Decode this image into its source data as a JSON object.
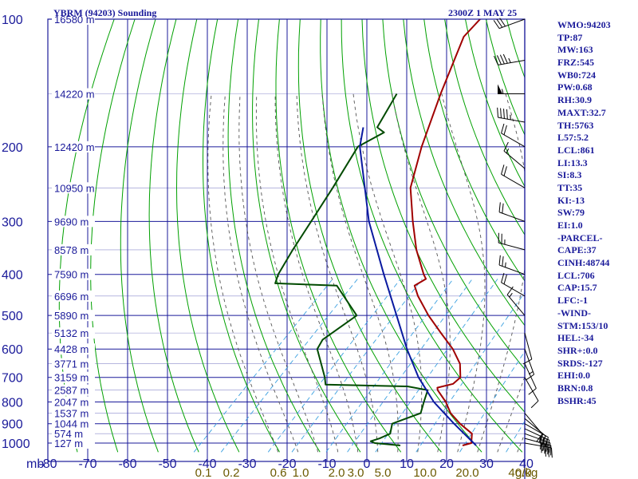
{
  "header": {
    "station": "YBRM (94203) Sounding",
    "time": "2300Z  1 MAY 25"
  },
  "indices": [
    "WMO:94203",
    "TP:87",
    "MW:163",
    "FRZ:545",
    "WB0:724",
    "PW:0.68",
    "RH:30.9",
    "MAXT:32.7",
    "TH:5763",
    "L57:5.2",
    "LCL:861",
    "LI:13.3",
    "SI:8.3",
    "TT:35",
    "KI:-13",
    "SW:79",
    "EI:1.0",
    "-PARCEL-",
    "CAPE:37",
    "CINH:48744",
    "LCL:706",
    "CAP:15.7",
    "LFC:-1",
    "-WIND-",
    "STM:153/10",
    "HEL:-34",
    "SHR+:0.0",
    "SRDS:-127",
    "EHI:0.0",
    "BRN:0.8",
    "BSHR:45"
  ],
  "colors": {
    "frame": "#1a1a9a",
    "isotherm": "#1a1a9a",
    "isobar": "#1a1a9a",
    "dry_adiabat": "#00a000",
    "moist_adiabat": "#555555",
    "mixing_ratio": "#3aa0e0",
    "temperature": "#a00000",
    "dewpoint": "#004a00",
    "parcel": "#0a1aa0",
    "mixing_label": "#6b5a00",
    "wind_barb": "#000000"
  },
  "chart_data": {
    "type": "skew-t log-p sounding",
    "pressure_axis": {
      "unit_label": "mb",
      "ticks": [
        100,
        200,
        300,
        400,
        500,
        600,
        700,
        800,
        900,
        1000
      ],
      "range": [
        100,
        1000
      ],
      "log_scale": true
    },
    "temperature_axis": {
      "unit_label": "C",
      "ticks": [
        -80,
        -70,
        -60,
        -50,
        -40,
        -30,
        -20,
        -10,
        0,
        10,
        20,
        30,
        40
      ],
      "range": [
        -80,
        40
      ]
    },
    "mixing_ratio_axis": {
      "unit_label": "g/kg",
      "ticks": [
        "0.1",
        "0.2",
        "0.6",
        "1.0",
        "2.0",
        "3.0",
        "5.0",
        "10.0",
        "20.0",
        "40.0"
      ]
    },
    "height_labels": [
      {
        "p": 100,
        "label": "16580 m"
      },
      {
        "p": 150,
        "label": "14220 m"
      },
      {
        "p": 200,
        "label": "12420 m"
      },
      {
        "p": 250,
        "label": "10950 m"
      },
      {
        "p": 300,
        "label": "9690 m"
      },
      {
        "p": 350,
        "label": "8578 m"
      },
      {
        "p": 400,
        "label": "7590 m"
      },
      {
        "p": 450,
        "label": "6696 m"
      },
      {
        "p": 500,
        "label": "5890 m"
      },
      {
        "p": 550,
        "label": "5132 m"
      },
      {
        "p": 600,
        "label": "4428 m"
      },
      {
        "p": 650,
        "label": "3771 m"
      },
      {
        "p": 700,
        "label": "3159 m"
      },
      {
        "p": 750,
        "label": "2587 m"
      },
      {
        "p": 800,
        "label": "2047 m"
      },
      {
        "p": 850,
        "label": "1537 m"
      },
      {
        "p": 900,
        "label": "1044 m"
      },
      {
        "p": 950,
        "label": "574 m"
      },
      {
        "p": 1000,
        "label": "127 m"
      }
    ],
    "series": [
      {
        "type": "temperature",
        "points": [
          {
            "p": 1013,
            "t": 24.6
          },
          {
            "p": 1000,
            "t": 26.2
          },
          {
            "p": 950,
            "t": 24.0
          },
          {
            "p": 900,
            "t": 18.5
          },
          {
            "p": 850,
            "t": 13.5
          },
          {
            "p": 800,
            "t": 9.5
          },
          {
            "p": 750,
            "t": 4.5
          },
          {
            "p": 740,
            "t": 3.8
          },
          {
            "p": 725,
            "t": 6.8
          },
          {
            "p": 700,
            "t": 7.0
          },
          {
            "p": 650,
            "t": 3.5
          },
          {
            "p": 600,
            "t": -2.0
          },
          {
            "p": 550,
            "t": -9.0
          },
          {
            "p": 500,
            "t": -16.5
          },
          {
            "p": 450,
            "t": -24.0
          },
          {
            "p": 425,
            "t": -27.5
          },
          {
            "p": 410,
            "t": -26.3
          },
          {
            "p": 400,
            "t": -28.0
          },
          {
            "p": 350,
            "t": -36.0
          },
          {
            "p": 300,
            "t": -44.0
          },
          {
            "p": 250,
            "t": -53.0
          },
          {
            "p": 200,
            "t": -60.5
          },
          {
            "p": 150,
            "t": -69.0
          },
          {
            "p": 110,
            "t": -77.5
          },
          {
            "p": 100,
            "t": -77.8
          },
          {
            "p": 92,
            "t": -78.0
          }
        ]
      },
      {
        "type": "dewpoint",
        "points": [
          {
            "p": 1013,
            "t": 9.0
          },
          {
            "p": 1000,
            "t": 2.0
          },
          {
            "p": 990,
            "t": 0.5
          },
          {
            "p": 975,
            "t": 2.0
          },
          {
            "p": 950,
            "t": 3.5
          },
          {
            "p": 900,
            "t": 1.5
          },
          {
            "p": 850,
            "t": 6.0
          },
          {
            "p": 800,
            "t": 4.0
          },
          {
            "p": 750,
            "t": 2.0
          },
          {
            "p": 735,
            "t": -4.0
          },
          {
            "p": 728,
            "t": -25.0
          },
          {
            "p": 700,
            "t": -27.0
          },
          {
            "p": 600,
            "t": -36.0
          },
          {
            "p": 570,
            "t": -37.0
          },
          {
            "p": 500,
            "t": -34.5
          },
          {
            "p": 425,
            "t": -47.0
          },
          {
            "p": 420,
            "t": -63.0
          },
          {
            "p": 400,
            "t": -64.5
          },
          {
            "p": 350,
            "t": -67.0
          },
          {
            "p": 300,
            "t": -69.5
          },
          {
            "p": 250,
            "t": -72.5
          },
          {
            "p": 200,
            "t": -76.5
          },
          {
            "p": 185,
            "t": -73.5
          },
          {
            "p": 180,
            "t": -76.5
          },
          {
            "p": 150,
            "t": -80.0
          }
        ]
      },
      {
        "type": "parcel",
        "points": [
          {
            "p": 1013,
            "t": 28.0
          },
          {
            "p": 900,
            "t": 17.0
          },
          {
            "p": 800,
            "t": 6.5
          },
          {
            "p": 700,
            "t": -3.5
          },
          {
            "p": 600,
            "t": -13.5
          },
          {
            "p": 500,
            "t": -24.5
          },
          {
            "p": 400,
            "t": -38.0
          },
          {
            "p": 300,
            "t": -55.0
          },
          {
            "p": 200,
            "t": -76.0
          },
          {
            "p": 180,
            "t": -80.0
          }
        ]
      }
    ],
    "wind_barbs": [
      {
        "p": 1000,
        "dir": 100,
        "spd": 35
      },
      {
        "p": 975,
        "dir": 105,
        "spd": 40
      },
      {
        "p": 950,
        "dir": 110,
        "spd": 40
      },
      {
        "p": 925,
        "dir": 115,
        "spd": 35
      },
      {
        "p": 900,
        "dir": 120,
        "spd": 30
      },
      {
        "p": 875,
        "dir": 130,
        "spd": 20
      },
      {
        "p": 850,
        "dir": 140,
        "spd": 10
      },
      {
        "p": 700,
        "dir": 150,
        "spd": 10
      },
      {
        "p": 650,
        "dir": 155,
        "spd": 10
      },
      {
        "p": 600,
        "dir": 160,
        "spd": 15
      },
      {
        "p": 550,
        "dir": 165,
        "spd": 10
      },
      {
        "p": 500,
        "dir": 320,
        "spd": 15
      },
      {
        "p": 450,
        "dir": 300,
        "spd": 20
      },
      {
        "p": 400,
        "dir": 290,
        "spd": 25
      },
      {
        "p": 350,
        "dir": 285,
        "spd": 25
      },
      {
        "p": 300,
        "dir": 290,
        "spd": 20
      },
      {
        "p": 250,
        "dir": 300,
        "spd": 20
      },
      {
        "p": 225,
        "dir": 310,
        "spd": 15
      },
      {
        "p": 200,
        "dir": 300,
        "spd": 20
      },
      {
        "p": 175,
        "dir": 280,
        "spd": 45
      },
      {
        "p": 150,
        "dir": 270,
        "spd": 55
      },
      {
        "p": 125,
        "dir": 260,
        "spd": 45
      },
      {
        "p": 100,
        "dir": 250,
        "spd": 30
      }
    ]
  }
}
